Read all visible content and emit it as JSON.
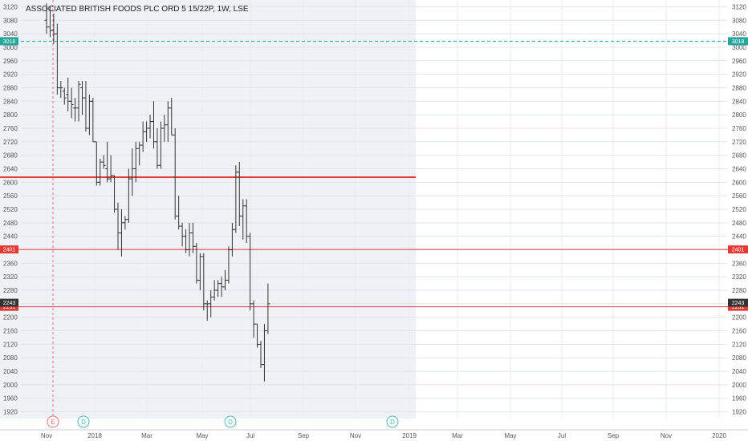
{
  "chart_data": {
    "type": "ohlc",
    "title": "ASSOCIATED BRITISH FOODS PLC ORD 5 15/22P, 1W, LSE",
    "ylim": [
      1900,
      3140
    ],
    "y_ticks": [
      1920,
      1960,
      2000,
      2040,
      2080,
      2120,
      2160,
      2200,
      2240,
      2280,
      2320,
      2360,
      2400,
      2440,
      2480,
      2520,
      2560,
      2600,
      2640,
      2680,
      2720,
      2760,
      2800,
      2840,
      2880,
      2920,
      2960,
      3000,
      3040,
      3080,
      3120
    ],
    "x_ticks": [
      "Nov",
      "2018",
      "Mar",
      "May",
      "Jul",
      "Sep",
      "Nov",
      "2019",
      "Mar",
      "May",
      "Jul",
      "Sep",
      "Nov",
      "2020"
    ],
    "grid": true,
    "last_price": {
      "value": 2243,
      "label": "2243",
      "color": "#333333"
    },
    "horizontal_lines": [
      {
        "value": 3018,
        "label": "3018",
        "style": "dashed",
        "color": "#26a69a"
      },
      {
        "value": 2401,
        "label": "2401",
        "style": "solid",
        "color": "#e53935"
      },
      {
        "value": 2231,
        "label": "2231",
        "style": "solid",
        "color": "#e53935"
      },
      {
        "value": 2615,
        "label": "",
        "style": "solid-thick",
        "color": "#e53935"
      }
    ],
    "event_markers": [
      {
        "label": "E",
        "color": "#e57373"
      },
      {
        "label": "D",
        "color": "#4db6ac"
      },
      {
        "label": "D",
        "color": "#4db6ac"
      },
      {
        "label": "D",
        "color": "#4db6ac"
      }
    ],
    "bars": [
      [
        3080,
        3130,
        3040,
        3060
      ],
      [
        3060,
        3120,
        3030,
        3050
      ],
      [
        3050,
        3100,
        3010,
        3040
      ],
      [
        3040,
        3070,
        2860,
        2880
      ],
      [
        2880,
        2900,
        2850,
        2880
      ],
      [
        2870,
        2880,
        2830,
        2850
      ],
      [
        2860,
        2910,
        2810,
        2840
      ],
      [
        2840,
        2880,
        2790,
        2830
      ],
      [
        2820,
        2850,
        2780,
        2820
      ],
      [
        2820,
        2900,
        2780,
        2890
      ],
      [
        2880,
        2900,
        2800,
        2850
      ],
      [
        2850,
        2900,
        2750,
        2760
      ],
      [
        2760,
        2860,
        2740,
        2840
      ],
      [
        2840,
        2850,
        2720,
        2720
      ],
      [
        2720,
        2720,
        2590,
        2600
      ],
      [
        2600,
        2670,
        2590,
        2660
      ],
      [
        2660,
        2680,
        2640,
        2650
      ],
      [
        2640,
        2720,
        2600,
        2610
      ],
      [
        2610,
        2680,
        2600,
        2620
      ],
      [
        2620,
        2620,
        2510,
        2520
      ],
      [
        2520,
        2540,
        2400,
        2450
      ],
      [
        2450,
        2520,
        2380,
        2480
      ],
      [
        2480,
        2500,
        2460,
        2490
      ],
      [
        2490,
        2640,
        2480,
        2610
      ],
      [
        2610,
        2700,
        2560,
        2640
      ],
      [
        2640,
        2720,
        2600,
        2700
      ],
      [
        2700,
        2720,
        2650,
        2710
      ],
      [
        2710,
        2780,
        2690,
        2750
      ],
      [
        2750,
        2780,
        2720,
        2760
      ],
      [
        2760,
        2800,
        2730,
        2780
      ],
      [
        2780,
        2840,
        2700,
        2720
      ],
      [
        2720,
        2760,
        2640,
        2650
      ],
      [
        2650,
        2780,
        2640,
        2760
      ],
      [
        2760,
        2800,
        2720,
        2770
      ],
      [
        2770,
        2840,
        2720,
        2820
      ],
      [
        2820,
        2850,
        2740,
        2740
      ],
      [
        2740,
        2760,
        2490,
        2500
      ],
      [
        2500,
        2560,
        2460,
        2470
      ],
      [
        2470,
        2480,
        2410,
        2440
      ],
      [
        2440,
        2460,
        2390,
        2400
      ],
      [
        2400,
        2480,
        2380,
        2450
      ],
      [
        2450,
        2480,
        2390,
        2410
      ],
      [
        2410,
        2420,
        2300,
        2310
      ],
      [
        2310,
        2390,
        2280,
        2380
      ],
      [
        2380,
        2390,
        2220,
        2240
      ],
      [
        2240,
        2250,
        2190,
        2240
      ],
      [
        2240,
        2280,
        2200,
        2260
      ],
      [
        2260,
        2310,
        2250,
        2280
      ],
      [
        2280,
        2310,
        2260,
        2300
      ],
      [
        2300,
        2320,
        2260,
        2290
      ],
      [
        2290,
        2340,
        2280,
        2310
      ],
      [
        2310,
        2410,
        2300,
        2400
      ],
      [
        2400,
        2480,
        2380,
        2460
      ],
      [
        2460,
        2650,
        2450,
        2630
      ],
      [
        2630,
        2660,
        2470,
        2500
      ],
      [
        2500,
        2550,
        2430,
        2530
      ],
      [
        2530,
        2550,
        2420,
        2440
      ],
      [
        2440,
        2450,
        2220,
        2240
      ],
      [
        2240,
        2250,
        2140,
        2180
      ],
      [
        2180,
        2180,
        2110,
        2120
      ],
      [
        2120,
        2130,
        2050,
        2060
      ],
      [
        2060,
        2180,
        2010,
        2160
      ],
      [
        2160,
        2300,
        2150,
        2240
      ]
    ]
  }
}
